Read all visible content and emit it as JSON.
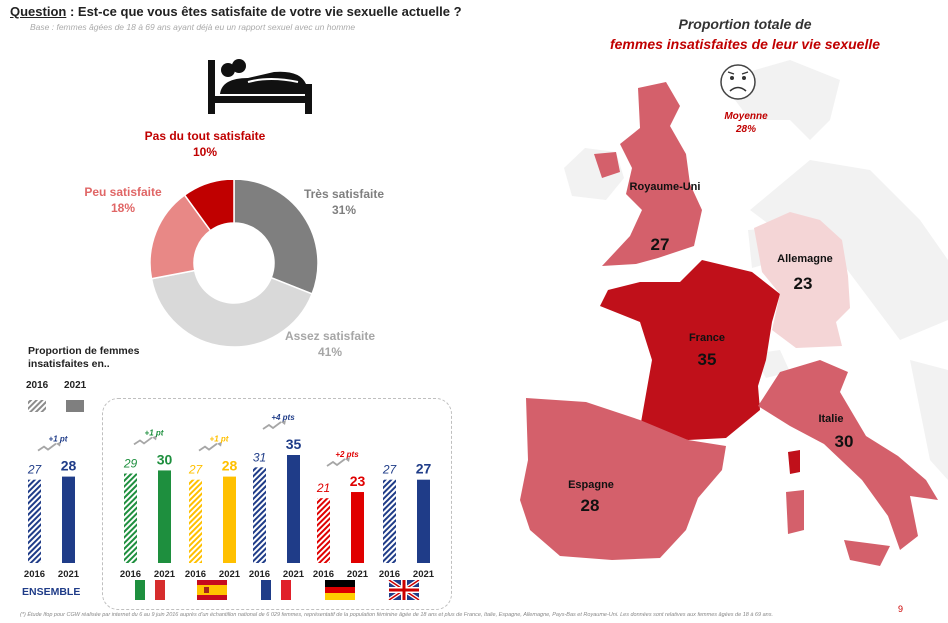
{
  "header": {
    "question_label": "Question",
    "question_text": " : Est-ce que vous êtes satisfaite de votre vie sexuelle actuelle ?",
    "base": "Base :  femmes âgées de 18 à 69 ans ayant déjà eu un rapport sexuel avec un homme"
  },
  "chart_data": [
    {
      "type": "pie",
      "labels": [
        "Très satisfaite",
        "Assez satisfaite",
        "Peu satisfaite",
        "Pas du tout satisfaite"
      ],
      "values": [
        31,
        41,
        18,
        10
      ],
      "value_labels": [
        "31%",
        "41%",
        "18%",
        "10%"
      ],
      "colors": [
        "#7f7f7f",
        "#d9d9d9",
        "#e88886",
        "#c00000"
      ]
    },
    {
      "type": "bar",
      "title": "Proportion de femmes insatisfaites en..",
      "legend": [
        "2016",
        "2021"
      ],
      "groups": [
        {
          "name": "ENSEMBLE",
          "v2016": 27,
          "v2021": 28,
          "delta": "+1 pt",
          "color": "#1f3c88"
        },
        {
          "flag": "italy",
          "v2016": 29,
          "v2021": 30,
          "delta": "+1 pt",
          "color": "#1e8f3e"
        },
        {
          "flag": "spain",
          "v2016": 27,
          "v2021": 28,
          "delta": "+1 pt",
          "color": "#ffc000"
        },
        {
          "flag": "france",
          "v2016": 31,
          "v2021": 35,
          "delta": "+4 pts",
          "color": "#1f3c88"
        },
        {
          "flag": "germany",
          "v2016": 21,
          "v2021": 23,
          "delta": "+2 pts",
          "color": "#e00000"
        },
        {
          "flag": "uk",
          "v2016": 27,
          "v2021": 27,
          "delta": "",
          "color": "#1f3c88"
        }
      ],
      "year_labels": [
        "2016",
        "2021"
      ]
    },
    {
      "type": "map",
      "title_line1": "Proportion totale de",
      "title_line2": "femmes insatisfaites de leur vie sexuelle",
      "average_label": "Moyenne",
      "average_value": "28%",
      "countries": [
        {
          "name": "Royaume-Uni",
          "value": 27
        },
        {
          "name": "Allemagne",
          "value": 23
        },
        {
          "name": "France",
          "value": 35
        },
        {
          "name": "Italie",
          "value": 30
        },
        {
          "name": "Espagne",
          "value": 28
        }
      ]
    }
  ],
  "footnote": "(*) Étude Ifop pour CGW réalisée par internet du 6 au 9 juin 2016 auprès d'un échantillon national de 6 029 femmes, représentatif de la population féminine âgée de 18 ans et plus de France, Italie, Espagne, Allemagne, Pays-Bas et Royaume-Uni. Les données sont relatives aux femmes âgées de 18 à 69 ans.",
  "page_number": "9",
  "icons": {
    "couple": "couple-in-bed-icon",
    "sad": "sad-face-icon"
  }
}
